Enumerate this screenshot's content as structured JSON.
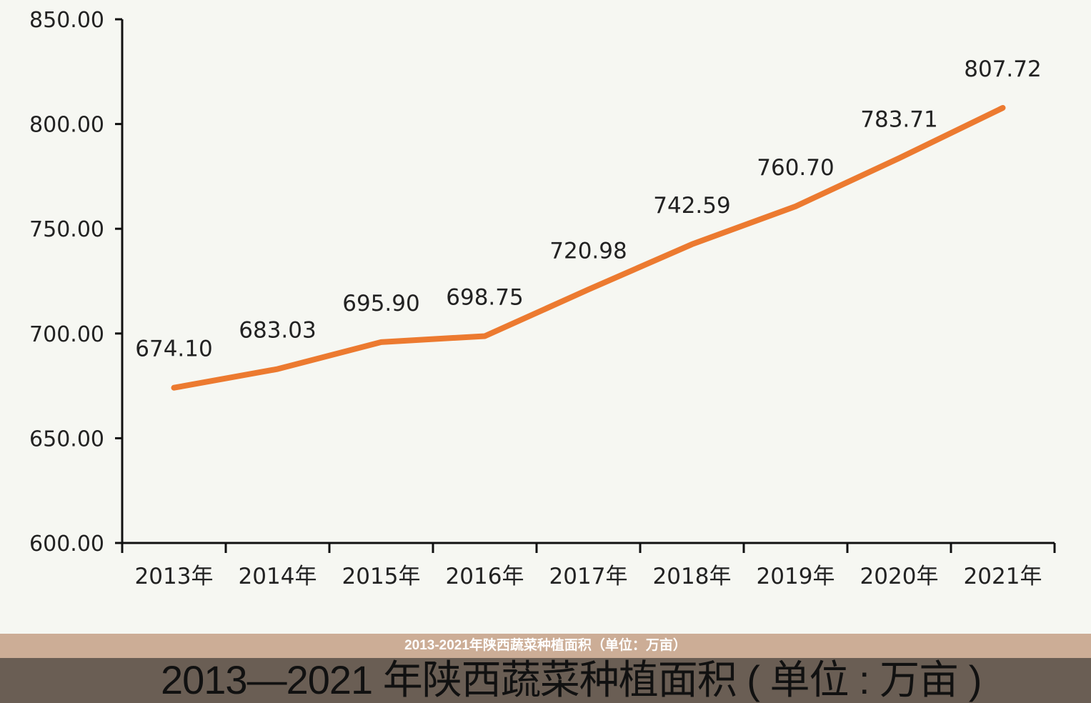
{
  "chart_data": {
    "type": "line",
    "categories": [
      "2013年",
      "2014年",
      "2015年",
      "2016年",
      "2017年",
      "2018年",
      "2019年",
      "2020年",
      "2021年"
    ],
    "values": [
      674.1,
      683.03,
      695.9,
      698.75,
      720.98,
      742.59,
      760.7,
      783.71,
      807.72
    ],
    "data_labels": [
      "674.10",
      "683.03",
      "695.90",
      "698.75",
      "720.98",
      "742.59",
      "760.70",
      "783.71",
      "807.72"
    ],
    "ylim": [
      600,
      850
    ],
    "yticks": [
      "600.00",
      "650.00",
      "700.00",
      "750.00",
      "800.00",
      "850.00"
    ],
    "grid": false,
    "legend": "none",
    "line_color": "#ec7a30",
    "title": "2013—2021 年陕西蔬菜种植面积 ( 单位 : 万亩 )",
    "xlabel": "",
    "ylabel": ""
  },
  "caption": "2013-2021年陕西蔬菜种植面积（单位：万亩）"
}
